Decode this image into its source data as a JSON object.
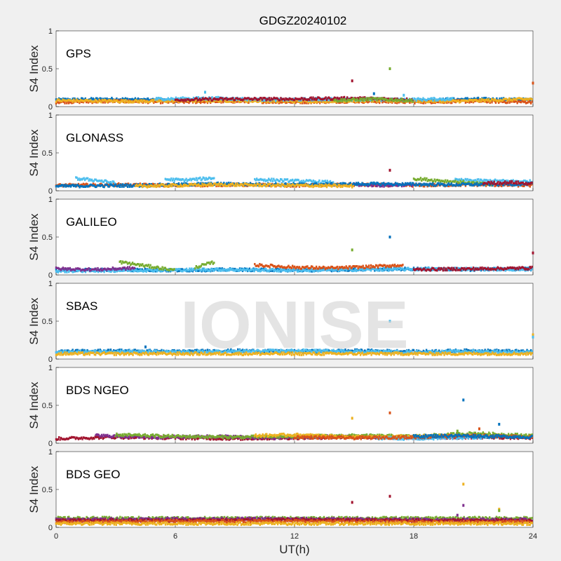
{
  "title": "GDGZ20240102",
  "watermark": "IONISE",
  "chart_data": {
    "type": "scatter",
    "xlabel": "UT(h)",
    "ylabel": "S4 Index",
    "xlim": [
      0,
      24
    ],
    "ylim": [
      0,
      1
    ],
    "xticks": [
      "0",
      "6",
      "12",
      "18",
      "24"
    ],
    "yticks": [
      "0",
      "0.5",
      "1"
    ],
    "colors": [
      "#0072BD",
      "#D95319",
      "#EDB120",
      "#7E2F8E",
      "#77AC30",
      "#4DBEEE",
      "#A2142F"
    ],
    "panels": [
      {
        "name": "GPS",
        "series": [
          {
            "color": "#0072BD",
            "x": [
              0,
              3,
              6,
              9,
              12,
              15,
              18,
              21,
              24
            ],
            "y": [
              0.09,
              0.1,
              0.08,
              0.09,
              0.08,
              0.09,
              0.08,
              0.1,
              0.09
            ]
          },
          {
            "color": "#D95319",
            "x": [
              0,
              3,
              6,
              9,
              12,
              15,
              18,
              21,
              24
            ],
            "y": [
              0.06,
              0.07,
              0.06,
              0.07,
              0.06,
              0.07,
              0.06,
              0.07,
              0.06
            ]
          },
          {
            "color": "#EDB120",
            "x": [
              0,
              4,
              8,
              12,
              16,
              20,
              24
            ],
            "y": [
              0.08,
              0.07,
              0.08,
              0.07,
              0.08,
              0.07,
              0.1
            ]
          },
          {
            "color": "#4DBEEE",
            "x": [
              5,
              8,
              11,
              14,
              17,
              20
            ],
            "y": [
              0.1,
              0.11,
              0.09,
              0.1,
              0.09,
              0.1
            ]
          },
          {
            "color": "#A2142F",
            "x": [
              6,
              9,
              12,
              15,
              18
            ],
            "y": [
              0.09,
              0.1,
              0.1,
              0.11,
              0.09
            ]
          },
          {
            "color": "#77AC30",
            "x": [
              14,
              16,
              18
            ],
            "y": [
              0.08,
              0.1,
              0.08
            ]
          }
        ],
        "outliers": [
          {
            "x": 14.9,
            "y": 0.34,
            "color": "#A2142F"
          },
          {
            "x": 16.8,
            "y": 0.5,
            "color": "#77AC30"
          },
          {
            "x": 24.0,
            "y": 0.31,
            "color": "#D95319"
          },
          {
            "x": 7.5,
            "y": 0.19,
            "color": "#4DBEEE"
          },
          {
            "x": 16.0,
            "y": 0.17,
            "color": "#0072BD"
          },
          {
            "x": 17.5,
            "y": 0.15,
            "color": "#4DBEEE"
          }
        ]
      },
      {
        "name": "GLONASS",
        "series": [
          {
            "color": "#D95319",
            "x": [
              0,
              3,
              6,
              9,
              12,
              15,
              18,
              21,
              24
            ],
            "y": [
              0.07,
              0.08,
              0.07,
              0.08,
              0.07,
              0.08,
              0.07,
              0.08,
              0.07
            ]
          },
          {
            "color": "#4DBEEE",
            "x": [
              1,
              2,
              3
            ],
            "y": [
              0.16,
              0.14,
              0.1
            ]
          },
          {
            "color": "#4DBEEE",
            "x": [
              5.5,
              6.5,
              7.5,
              8
            ],
            "y": [
              0.15,
              0.14,
              0.16,
              0.17
            ]
          },
          {
            "color": "#4DBEEE",
            "x": [
              10,
              12,
              14
            ],
            "y": [
              0.15,
              0.13,
              0.11
            ]
          },
          {
            "color": "#4DBEEE",
            "x": [
              20,
              22,
              24
            ],
            "y": [
              0.14,
              0.13,
              0.12
            ]
          },
          {
            "color": "#77AC30",
            "x": [
              18,
              20,
              22
            ],
            "y": [
              0.16,
              0.12,
              0.08
            ]
          },
          {
            "color": "#7E2F8E",
            "x": [
              15,
              16.5,
              18
            ],
            "y": [
              0.08,
              0.07,
              0.08
            ]
          },
          {
            "color": "#0072BD",
            "x": [
              0,
              4,
              8,
              12,
              16,
              20,
              24
            ],
            "y": [
              0.06,
              0.07,
              0.09,
              0.08,
              0.09,
              0.08,
              0.09
            ]
          },
          {
            "color": "#EDB120",
            "x": [
              4,
              8,
              12,
              15
            ],
            "y": [
              0.06,
              0.08,
              0.07,
              0.06
            ]
          },
          {
            "color": "#A2142F",
            "x": [
              21.5,
              23,
              24
            ],
            "y": [
              0.1,
              0.11,
              0.09
            ]
          }
        ],
        "outliers": [
          {
            "x": 16.8,
            "y": 0.27,
            "color": "#A2142F"
          }
        ]
      },
      {
        "name": "GALILEO",
        "series": [
          {
            "color": "#0072BD",
            "x": [
              0,
              3,
              6,
              9,
              12,
              15,
              18,
              21,
              24
            ],
            "y": [
              0.06,
              0.07,
              0.06,
              0.07,
              0.06,
              0.07,
              0.08,
              0.07,
              0.08
            ]
          },
          {
            "color": "#4DBEEE",
            "x": [
              0,
              4,
              8,
              12,
              16,
              20,
              24
            ],
            "y": [
              0.05,
              0.06,
              0.07,
              0.06,
              0.07,
              0.08,
              0.07
            ]
          },
          {
            "color": "#77AC30",
            "x": [
              3.2,
              4.5,
              6
            ],
            "y": [
              0.17,
              0.12,
              0.06
            ]
          },
          {
            "color": "#77AC30",
            "x": [
              7,
              8
            ],
            "y": [
              0.1,
              0.17
            ]
          },
          {
            "color": "#D95319",
            "x": [
              10,
              12,
              14,
              16,
              17.5
            ],
            "y": [
              0.13,
              0.1,
              0.09,
              0.11,
              0.13
            ]
          },
          {
            "color": "#7E2F8E",
            "x": [
              0,
              2,
              4
            ],
            "y": [
              0.08,
              0.07,
              0.09
            ]
          },
          {
            "color": "#A2142F",
            "x": [
              18,
              21,
              24
            ],
            "y": [
              0.07,
              0.08,
              0.09
            ]
          }
        ],
        "outliers": [
          {
            "x": 14.9,
            "y": 0.33,
            "color": "#77AC30"
          },
          {
            "x": 16.8,
            "y": 0.5,
            "color": "#0072BD"
          },
          {
            "x": 24.0,
            "y": 0.29,
            "color": "#A2142F"
          }
        ]
      },
      {
        "name": "SBAS",
        "series": [
          {
            "color": "#0072BD",
            "x": [
              0,
              3,
              6,
              9,
              12,
              15,
              18,
              21,
              24
            ],
            "y": [
              0.1,
              0.11,
              0.1,
              0.11,
              0.1,
              0.11,
              0.1,
              0.11,
              0.1
            ]
          },
          {
            "color": "#4DBEEE",
            "x": [
              0,
              3,
              6,
              9,
              12,
              15,
              18,
              21,
              24
            ],
            "y": [
              0.09,
              0.1,
              0.09,
              0.1,
              0.11,
              0.1,
              0.09,
              0.1,
              0.09
            ]
          },
          {
            "color": "#EDB120",
            "x": [
              0,
              6,
              12,
              18,
              24
            ],
            "y": [
              0.07,
              0.07,
              0.07,
              0.07,
              0.07
            ]
          }
        ],
        "outliers": [
          {
            "x": 16.8,
            "y": 0.5,
            "color": "#4DBEEE"
          },
          {
            "x": 24.0,
            "y": 0.32,
            "color": "#EDB120"
          },
          {
            "x": 24.0,
            "y": 0.29,
            "color": "#4DBEEE"
          },
          {
            "x": 4.5,
            "y": 0.16,
            "color": "#0072BD"
          }
        ]
      },
      {
        "name": "BDS NGEO",
        "series": [
          {
            "color": "#A2142F",
            "x": [
              0,
              3,
              6,
              9,
              12,
              15,
              18,
              21,
              24
            ],
            "y": [
              0.06,
              0.08,
              0.07,
              0.06,
              0.07,
              0.08,
              0.07,
              0.08,
              0.07
            ]
          },
          {
            "color": "#7E2F8E",
            "x": [
              2,
              5,
              8,
              11,
              14,
              17,
              20
            ],
            "y": [
              0.1,
              0.08,
              0.09,
              0.07,
              0.09,
              0.08,
              0.09
            ]
          },
          {
            "color": "#77AC30",
            "x": [
              3,
              6,
              9,
              12,
              15,
              18,
              21,
              24
            ],
            "y": [
              0.11,
              0.09,
              0.08,
              0.09,
              0.1,
              0.09,
              0.13,
              0.1
            ]
          },
          {
            "color": "#EDB120",
            "x": [
              10,
              12,
              14,
              16,
              18,
              20
            ],
            "y": [
              0.1,
              0.11,
              0.09,
              0.08,
              0.09,
              0.1
            ]
          },
          {
            "color": "#4DBEEE",
            "x": [
              16,
              18,
              20,
              22
            ],
            "y": [
              0.07,
              0.06,
              0.07,
              0.08
            ]
          },
          {
            "color": "#D95319",
            "x": [
              12,
              15,
              18,
              21,
              24
            ],
            "y": [
              0.08,
              0.07,
              0.08,
              0.1,
              0.08
            ]
          },
          {
            "color": "#0072BD",
            "x": [
              18,
              20,
              22,
              24
            ],
            "y": [
              0.09,
              0.1,
              0.09,
              0.08
            ]
          }
        ],
        "outliers": [
          {
            "x": 14.9,
            "y": 0.33,
            "color": "#EDB120"
          },
          {
            "x": 16.8,
            "y": 0.4,
            "color": "#D95319"
          },
          {
            "x": 20.5,
            "y": 0.57,
            "color": "#0072BD"
          },
          {
            "x": 21.3,
            "y": 0.19,
            "color": "#D95319"
          },
          {
            "x": 22.3,
            "y": 0.25,
            "color": "#0072BD"
          },
          {
            "x": 20.2,
            "y": 0.16,
            "color": "#77AC30"
          }
        ]
      },
      {
        "name": "BDS GEO",
        "series": [
          {
            "color": "#77AC30",
            "x": [
              0,
              6,
              12,
              18,
              24
            ],
            "y": [
              0.12,
              0.12,
              0.12,
              0.12,
              0.12
            ]
          },
          {
            "color": "#7E2F8E",
            "x": [
              0,
              6,
              12,
              18,
              24
            ],
            "y": [
              0.1,
              0.11,
              0.11,
              0.1,
              0.1
            ]
          },
          {
            "color": "#A2142F",
            "x": [
              0,
              6,
              12,
              18,
              24
            ],
            "y": [
              0.09,
              0.09,
              0.1,
              0.09,
              0.09
            ]
          },
          {
            "color": "#D95319",
            "x": [
              0,
              6,
              12,
              18,
              24
            ],
            "y": [
              0.07,
              0.08,
              0.08,
              0.07,
              0.07
            ]
          },
          {
            "color": "#EDB120",
            "x": [
              0,
              6,
              12,
              18,
              24
            ],
            "y": [
              0.05,
              0.05,
              0.05,
              0.05,
              0.05
            ]
          }
        ],
        "outliers": [
          {
            "x": 14.9,
            "y": 0.33,
            "color": "#A2142F"
          },
          {
            "x": 16.8,
            "y": 0.41,
            "color": "#A2142F"
          },
          {
            "x": 20.5,
            "y": 0.57,
            "color": "#EDB120"
          },
          {
            "x": 20.5,
            "y": 0.29,
            "color": "#7E2F8E"
          },
          {
            "x": 22.3,
            "y": 0.24,
            "color": "#EDB120"
          },
          {
            "x": 22.3,
            "y": 0.22,
            "color": "#77AC30"
          },
          {
            "x": 20.2,
            "y": 0.16,
            "color": "#7E2F8E"
          }
        ]
      }
    ]
  }
}
